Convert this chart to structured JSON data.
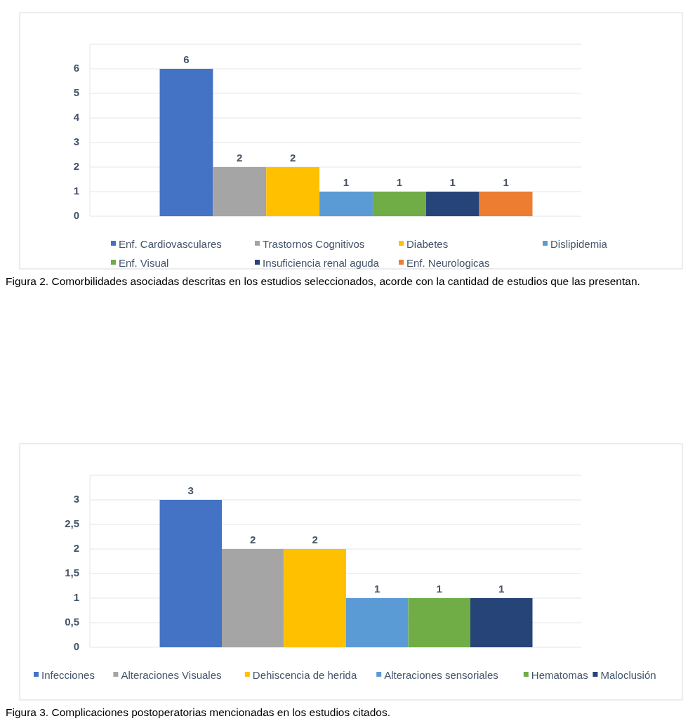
{
  "chart_data": [
    {
      "type": "bar",
      "categories": [
        null
      ],
      "ylim": [
        0,
        7
      ],
      "yticks": [
        0,
        1,
        2,
        3,
        4,
        5,
        6,
        {
          "value": 7,
          "label": null
        }
      ],
      "grid": "y",
      "legend": "bottom",
      "data_labels": true,
      "annotations": [
        "Figura 2. Comorbilidades asociadas descritas en los estudios seleccionados, acorde con la cantidad de estudios que las presentan."
      ],
      "series": [
        {
          "name": "Enf. Cardiovasculares",
          "color": "#4472c4",
          "values": [
            6
          ]
        },
        {
          "name": "Trastornos Cognitivos",
          "color": "#a5a5a5",
          "values": [
            2
          ]
        },
        {
          "name": "Diabetes",
          "color": "#ffc000",
          "values": [
            2
          ]
        },
        {
          "name": "Dislipidemia",
          "color": "#5b9bd5",
          "values": [
            1
          ]
        },
        {
          "name": "Enf. Visual",
          "color": "#70ad47",
          "values": [
            1
          ]
        },
        {
          "name": "Insuficiencia renal aguda",
          "color": "#264478",
          "values": [
            1
          ]
        },
        {
          "name": "Enf. Neurologicas",
          "color": "#ed7d31",
          "values": [
            1
          ]
        }
      ]
    },
    {
      "type": "bar",
      "categories": [
        null
      ],
      "ylim": [
        0,
        3.5
      ],
      "yticks": [
        0,
        {
          "value": 0.5,
          "label": "0,5"
        },
        1,
        {
          "value": 1.5,
          "label": "1,5"
        },
        2,
        {
          "value": 2.5,
          "label": "2,5"
        },
        3,
        {
          "value": 3.5,
          "label": null
        }
      ],
      "grid": "y",
      "legend": "bottom",
      "data_labels": true,
      "annotations": [
        "Figura 3. Complicaciones postoperatorias mencionadas en los estudios citados."
      ],
      "series": [
        {
          "name": "Infecciones",
          "color": "#4472c4",
          "values": [
            3
          ]
        },
        {
          "name": "Alteraciones Visuales",
          "color": "#a5a5a5",
          "values": [
            2
          ]
        },
        {
          "name": "Dehiscencia de herida",
          "color": "#ffc000",
          "values": [
            2
          ]
        },
        {
          "name": "Alteraciones sensoriales",
          "color": "#5b9bd5",
          "values": [
            1
          ]
        },
        {
          "name": "Hematomas",
          "color": "#70ad47",
          "values": [
            1
          ]
        },
        {
          "name": "Maloclusión",
          "color": "#264478",
          "values": [
            1
          ]
        }
      ]
    }
  ]
}
